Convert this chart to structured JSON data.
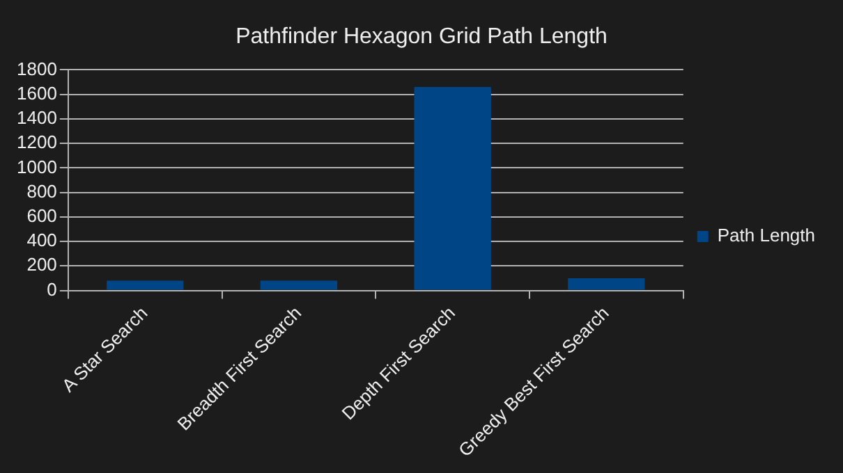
{
  "chart_data": {
    "type": "bar",
    "title": "Pathfinder Hexagon Grid Path Length",
    "categories": [
      "A Star Search",
      "Breadth First Search",
      "Depth First Search",
      "Greedy Best First Search"
    ],
    "series": [
      {
        "name": "Path Length",
        "color": "#004586",
        "values": [
          80,
          80,
          1660,
          100
        ]
      }
    ],
    "ylim": [
      0,
      1800
    ],
    "yticks": [
      0,
      200,
      400,
      600,
      800,
      1000,
      1200,
      1400,
      1600,
      1800
    ],
    "grid": "y",
    "legend": "right"
  }
}
